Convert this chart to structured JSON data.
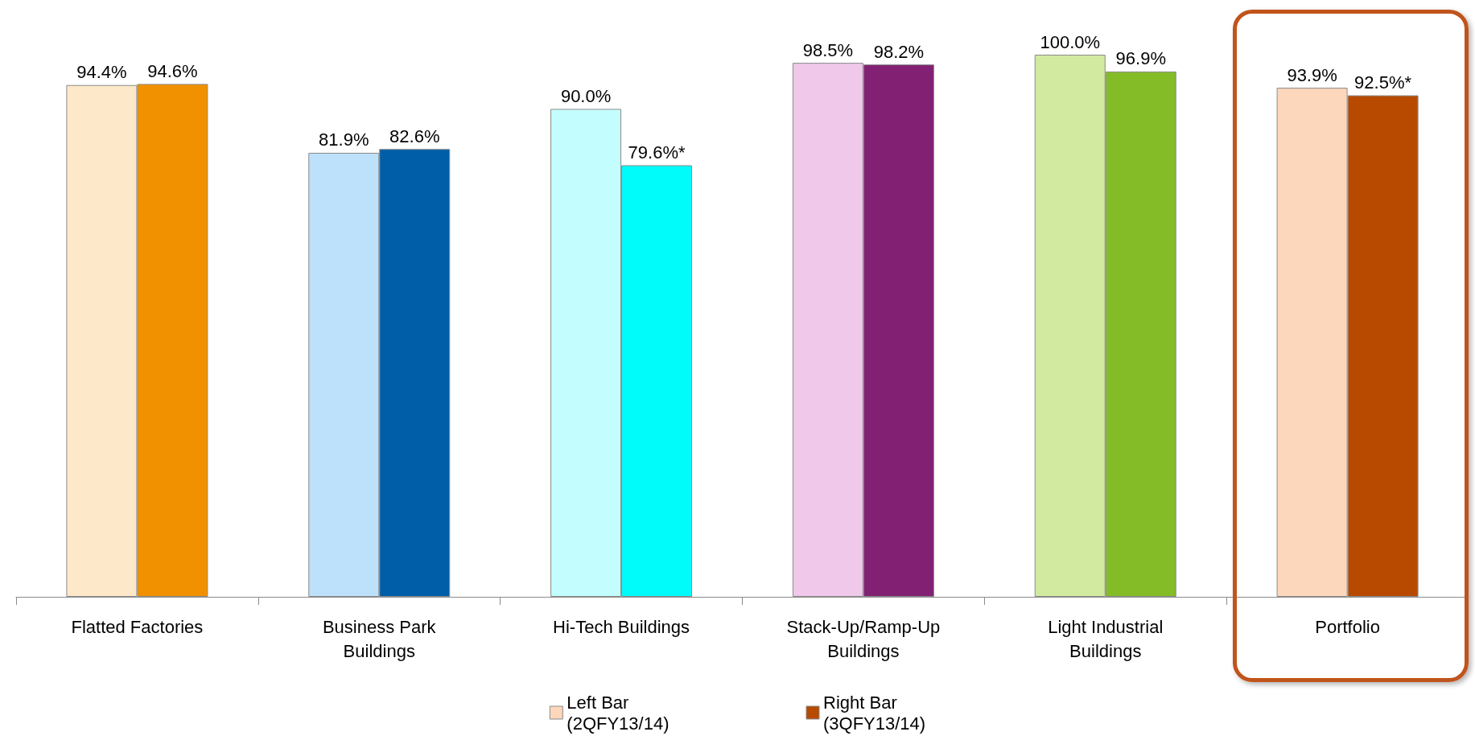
{
  "chart_data": {
    "type": "bar",
    "categories": [
      "Flatted Factories",
      "Business Park\nBuildings",
      "Hi-Tech Buildings",
      "Stack-Up/Ramp-Up\nBuildings",
      "Light Industrial\nBuildings",
      "Portfolio"
    ],
    "series": [
      {
        "name": "Left Bar\n(2QFY13/14)",
        "color": "#fdd7bc",
        "colors": [
          "#fde9c9",
          "#bde0fb",
          "#c4fdfd",
          "#f0c8ea",
          "#d1eaa0",
          "#fdd7bc"
        ],
        "values": [
          94.4,
          81.9,
          90.0,
          98.5,
          100.0,
          93.9
        ],
        "value_labels": [
          "94.4%",
          "81.9%",
          "90.0%",
          "98.5%",
          "100.0%",
          "93.9%"
        ]
      },
      {
        "name": "Right Bar\n(3QFY13/14)",
        "color": "#b84a00",
        "colors": [
          "#f29100",
          "#005ea8",
          "#00fbfb",
          "#822173",
          "#84bc27",
          "#b84a00"
        ],
        "values": [
          94.6,
          82.6,
          79.6,
          98.2,
          96.9,
          92.5
        ],
        "value_labels": [
          "94.6%",
          "82.6%",
          "79.6%*",
          "98.2%",
          "96.9%",
          "92.5%*"
        ]
      }
    ],
    "legend": "bottom",
    "grid": false
  }
}
